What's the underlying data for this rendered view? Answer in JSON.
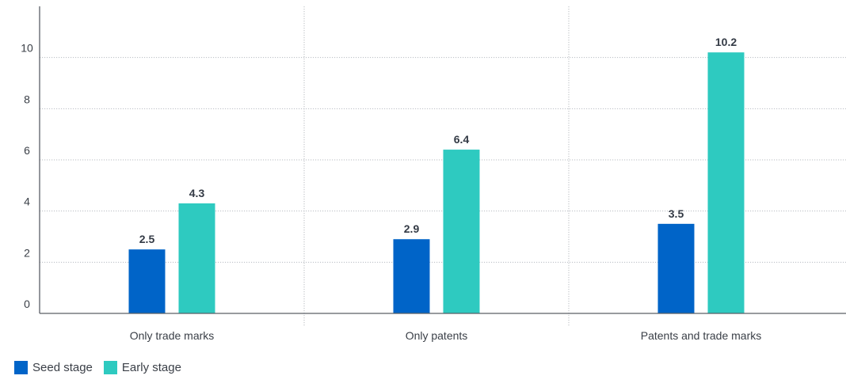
{
  "chart_data": {
    "type": "bar",
    "title": "",
    "xlabel": "",
    "ylabel": "",
    "categories": [
      "Only trade marks",
      "Only patents",
      "Patents and trade marks"
    ],
    "series": [
      {
        "name": "Seed stage",
        "color": "#0064c8",
        "values": [
          2.5,
          2.9,
          3.5
        ]
      },
      {
        "name": "Early stage",
        "color": "#2ecac0",
        "values": [
          4.3,
          6.4,
          10.2
        ]
      }
    ],
    "data_labels": [
      [
        "2.5",
        "2.9",
        "3.5"
      ],
      [
        "4.3",
        "6.4",
        "10.2"
      ]
    ],
    "ylim": [
      0,
      12
    ],
    "yticks": [
      0,
      2,
      4,
      6,
      8,
      10
    ],
    "ytick_labels": [
      "0",
      "2",
      "4",
      "6",
      "8",
      "10"
    ],
    "grid": true,
    "legend_position": "bottom-left"
  }
}
